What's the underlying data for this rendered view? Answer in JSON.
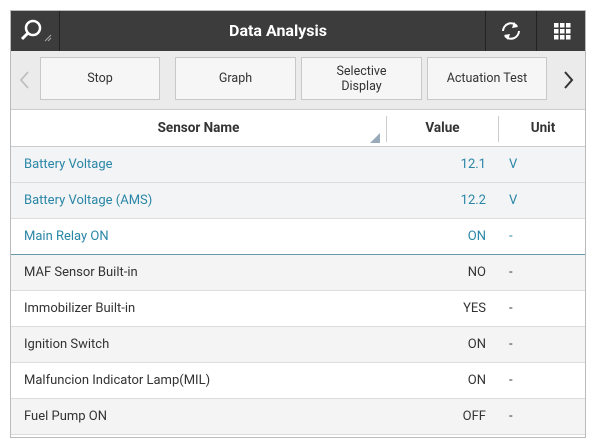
{
  "header": {
    "title": "Data Analysis"
  },
  "toolbar": {
    "buttons": [
      "Stop",
      "Graph",
      "Selective Display",
      "Actuation Test"
    ]
  },
  "table": {
    "columns": [
      "Sensor Name",
      "Value",
      "Unit"
    ],
    "rows": [
      {
        "name": "Battery Voltage",
        "value": 12.1,
        "unit": "V",
        "color": "#2a86a6",
        "background": "#f3f4f6"
      },
      {
        "name": "Battery Voltage (AMS)",
        "value": 12.2,
        "unit": "V",
        "color": "#2a86a6",
        "background": "#f3f4f6"
      },
      {
        "name": "Main Relay ON",
        "value": "ON",
        "unit": "-",
        "color": "#2a86a6",
        "background": "#ffffff"
      },
      {
        "name": "MAF Sensor Built-in",
        "value": "NO",
        "unit": "-",
        "color": "#333333",
        "background": "#f4f4f4"
      },
      {
        "name": "Immobilizer Built-in",
        "value": "YES",
        "unit": "-",
        "color": "#333333",
        "background": "#ffffff"
      },
      {
        "name": "Ignition Switch",
        "value": "ON",
        "unit": "-",
        "color": "#333333",
        "background": "#f4f4f4"
      },
      {
        "name": "Malfuncion Indicator Lamp(MIL)",
        "value": "ON",
        "unit": "-",
        "color": "#333333",
        "background": "#ffffff"
      },
      {
        "name": "Fuel Pump ON",
        "value": "OFF",
        "unit": "-",
        "color": "#333333",
        "background": "#f4f4f4"
      }
    ]
  }
}
